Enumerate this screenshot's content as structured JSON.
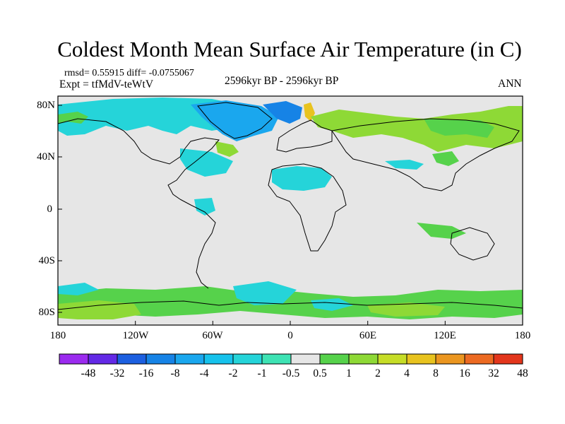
{
  "title": "Coldest Month Mean Surface Air Temperature (in C)",
  "stats": "rmsd= 0.55915 diff= -0.0755067",
  "experiment": "Expt = tfMdV-teWtV",
  "period": "2596kyr BP - 2596kyr BP",
  "season": "ANN",
  "map": {
    "lat_labels": [
      "80N",
      "40N",
      "0",
      "40S",
      "80S"
    ],
    "lon_labels": [
      "180",
      "120W",
      "60W",
      "0",
      "60E",
      "120E",
      "180"
    ]
  },
  "colorbar": {
    "levels": [
      "-48",
      "-32",
      "-16",
      "-8",
      "-4",
      "-2",
      "-1",
      "-0.5",
      "0.5",
      "1",
      "2",
      "4",
      "8",
      "16",
      "32",
      "48"
    ],
    "colors": [
      "#9b2bef",
      "#6329e6",
      "#1c5fe0",
      "#1683e6",
      "#1aa7ee",
      "#16c2ec",
      "#25d4d9",
      "#3ee3b4",
      "#e6e6e6",
      "#56d24b",
      "#8ed936",
      "#c6dd27",
      "#e8c31f",
      "#eb9620",
      "#ec6a22",
      "#e3361c"
    ]
  }
}
